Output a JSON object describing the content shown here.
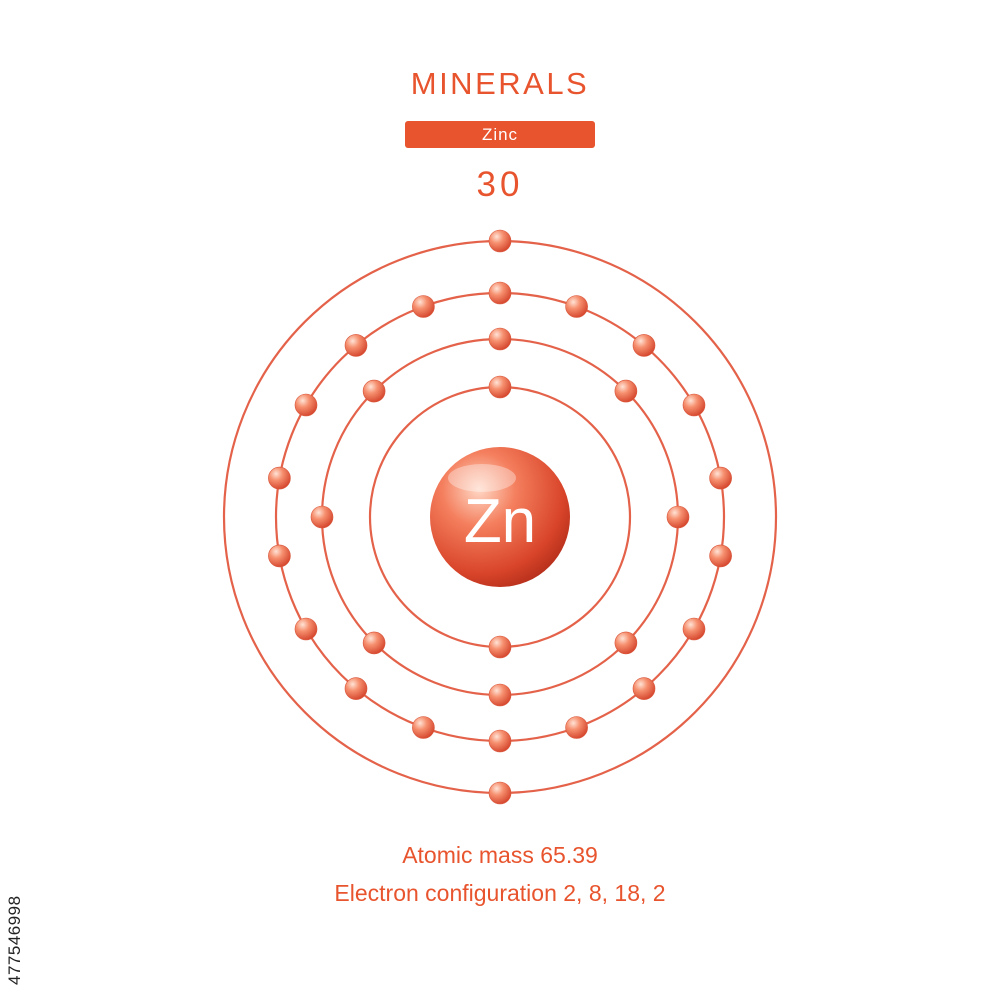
{
  "header": {
    "title": "MINERALS",
    "element_name": "Zinc",
    "atomic_number": "30"
  },
  "nucleus": {
    "symbol": "Zn"
  },
  "electron_shells": [
    2,
    8,
    18,
    2
  ],
  "info": {
    "mass_label": "Atomic mass",
    "mass_value": "65.39",
    "config_label": "Electron configuration",
    "config_value": "2, 8, 18, 2"
  },
  "watermark_id": "477546998",
  "colors": {
    "accent": "#e8542d",
    "orbit": "#e4624a",
    "text_on_accent": "#ffffff"
  }
}
